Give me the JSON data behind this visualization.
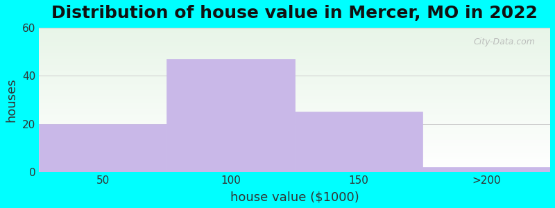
{
  "title": "Distribution of house value in Mercer, MO in 2022",
  "xlabel": "house value ($1000)",
  "ylabel": "houses",
  "categories": [
    "50",
    "100",
    "150",
    ">200"
  ],
  "values": [
    20,
    47,
    25,
    2
  ],
  "bar_color": "#c9b8e8",
  "bar_edge_color": "#c9b8e8",
  "ylim": [
    0,
    60
  ],
  "yticks": [
    0,
    20,
    40,
    60
  ],
  "bg_outer": "#00ffff",
  "bg_plot_top": "#e8f5e8",
  "bg_plot_bottom": "#ffffff",
  "watermark": "City-Data.com",
  "title_fontsize": 18,
  "label_fontsize": 13,
  "tick_fontsize": 11
}
